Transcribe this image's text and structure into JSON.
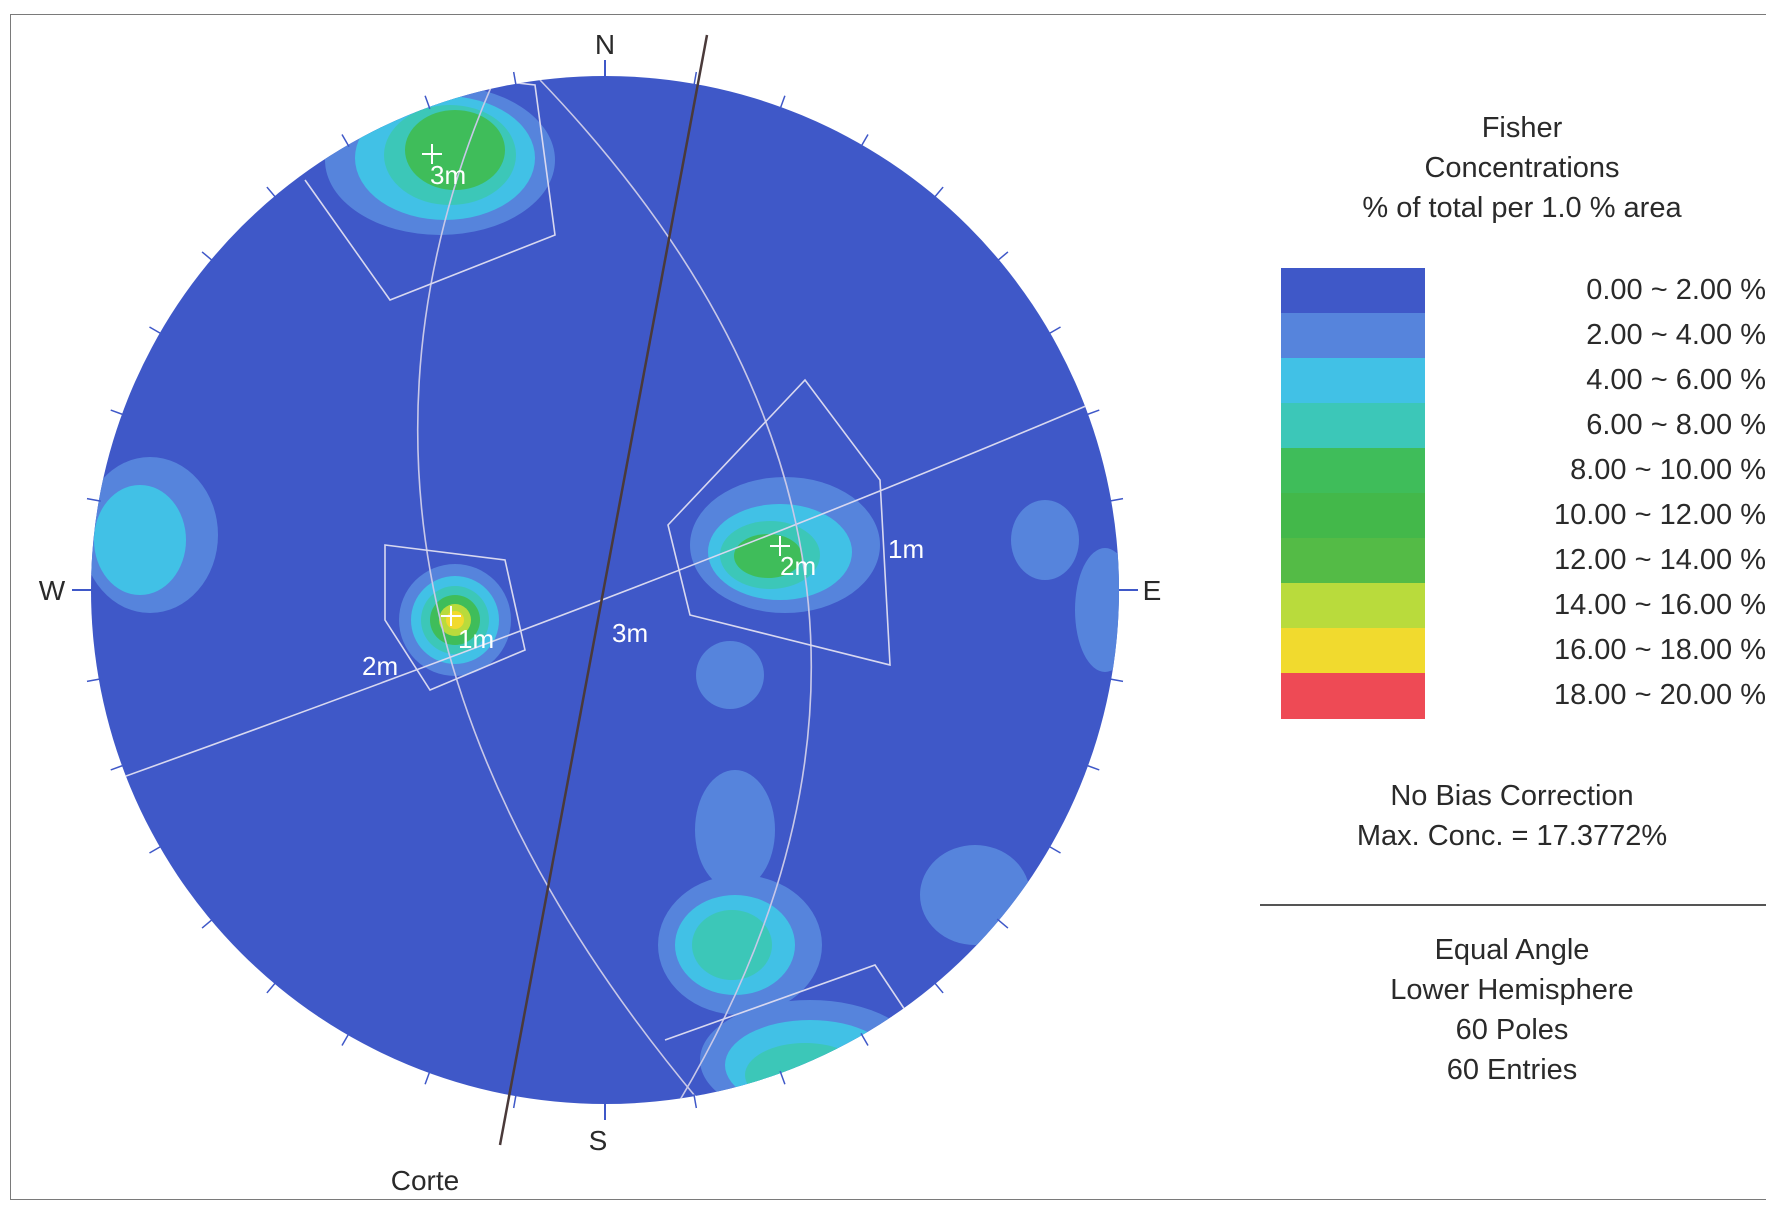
{
  "diagram": {
    "directions": {
      "n": "N",
      "e": "E",
      "s": "S",
      "w": "W"
    },
    "footer_label": "Corte",
    "set_labels": {
      "set1_pole": "1m",
      "set1_plane": "1m",
      "set2_pole": "2m",
      "set2_plane": "2m",
      "set3_pole": "3m",
      "set3_plane": "3m"
    }
  },
  "legend": {
    "title_line1": "Fisher",
    "title_line2": "Concentrations",
    "title_line3": "% of total per 1.0 % area",
    "bins": [
      {
        "label": "0.00 ~  2.00 %",
        "color": "#3f58c8"
      },
      {
        "label": "2.00 ~  4.00 %",
        "color": "#5684dc"
      },
      {
        "label": "4.00 ~  6.00 %",
        "color": "#41c1e6"
      },
      {
        "label": "6.00 ~  8.00 %",
        "color": "#3cc7b8"
      },
      {
        "label": "8.00 ~ 10.00 %",
        "color": "#3fbd5a"
      },
      {
        "label": "10.00 ~ 12.00 %",
        "color": "#43b84a"
      },
      {
        "label": "12.00 ~ 14.00 %",
        "color": "#54bb46"
      },
      {
        "label": "14.00 ~ 16.00 %",
        "color": "#b9db3c"
      },
      {
        "label": "16.00 ~ 18.00 %",
        "color": "#f1da2e"
      },
      {
        "label": "18.00 ~ 20.00 %",
        "color": "#ee4a55"
      }
    ],
    "bias": "No Bias Correction",
    "max_conc": "Max. Conc. = 17.3772%",
    "projection": "Equal Angle",
    "hemisphere": "Lower Hemisphere",
    "poles": "60 Poles",
    "entries": "60 Entries"
  }
}
